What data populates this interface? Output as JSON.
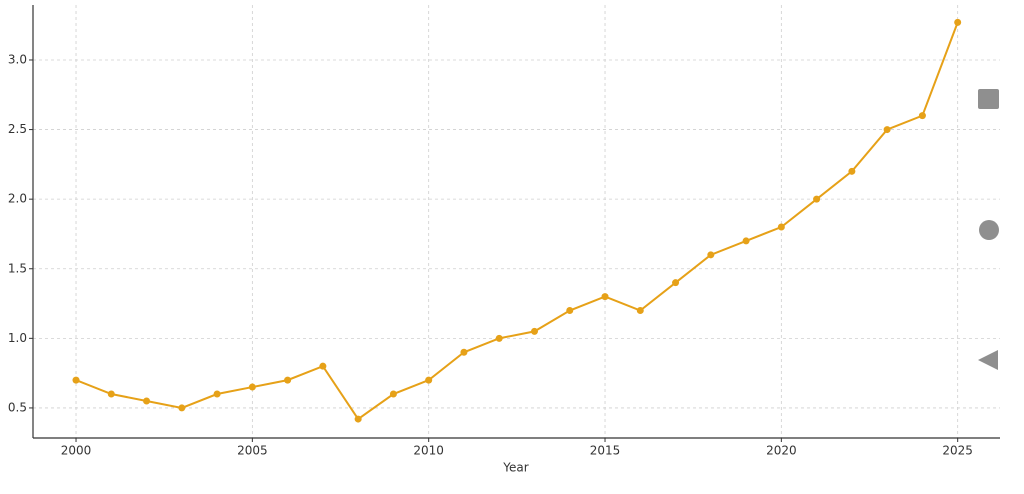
{
  "chart_data": {
    "type": "line",
    "x_label": "Year",
    "x": [
      2000,
      2001,
      2002,
      2003,
      2004,
      2005,
      2006,
      2007,
      2008,
      2009,
      2010,
      2011,
      2012,
      2013,
      2014,
      2015,
      2016,
      2017,
      2018,
      2019,
      2020,
      2021,
      2022,
      2023,
      2024,
      2025
    ],
    "values": [
      0.7,
      0.6,
      0.55,
      0.5,
      0.6,
      0.65,
      0.7,
      0.8,
      0.42,
      0.6,
      0.7,
      0.9,
      1.0,
      1.05,
      1.2,
      1.3,
      1.2,
      1.4,
      1.6,
      1.7,
      1.8,
      2.0,
      2.2,
      2.5,
      2.6,
      3.27
    ],
    "color": "#e6a118",
    "xlim": [
      1998.78,
      2026.2
    ],
    "xticks": [
      2000,
      2005,
      2010,
      2015,
      2020,
      2025
    ],
    "ylim": [
      0.284,
      3.395
    ],
    "yticks": [
      0.5,
      {
        "value": 1.0,
        "label": "1.0"
      },
      1.5,
      {
        "value": 2.0,
        "label": "2.0"
      },
      2.5,
      {
        "value": 3.0,
        "label": "3.0"
      }
    ],
    "grid": true
  }
}
